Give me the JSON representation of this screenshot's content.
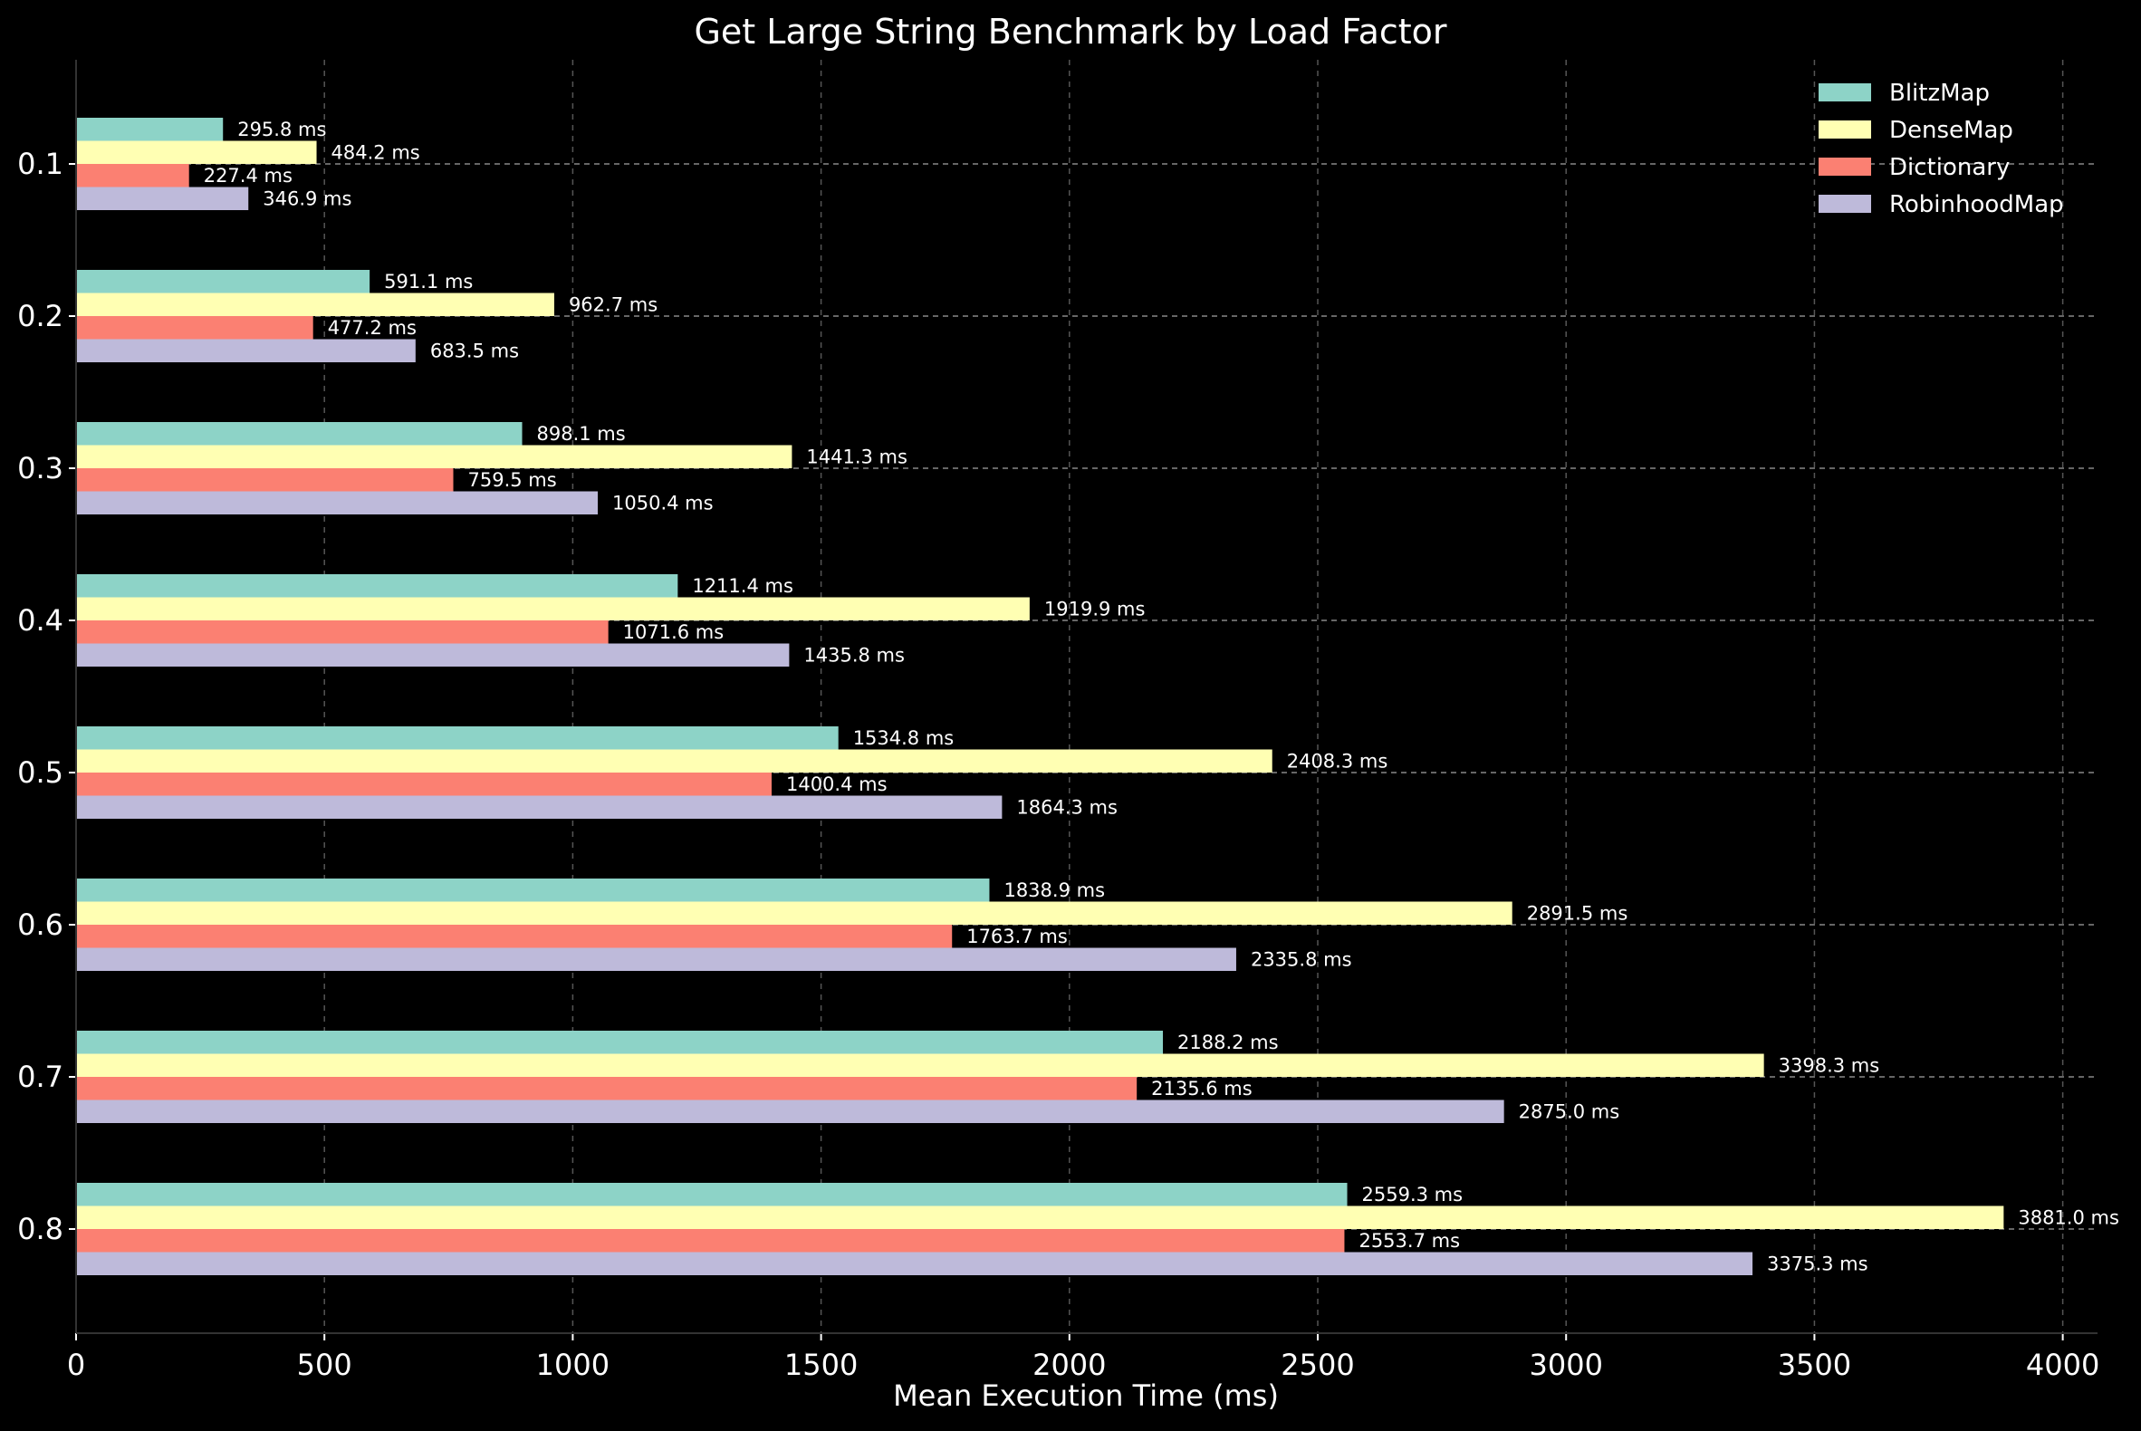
{
  "chart_data": {
    "type": "bar",
    "orientation": "horizontal",
    "title": "Get Large String Benchmark by Load Factor",
    "xlabel": "Mean Execution Time (ms)",
    "ylabel": "",
    "xlim": [
      0,
      4070
    ],
    "xticks": [
      0,
      500,
      1000,
      1500,
      2000,
      2500,
      3000,
      3500,
      4000
    ],
    "categories": [
      "0.1",
      "0.2",
      "0.3",
      "0.4",
      "0.5",
      "0.6",
      "0.7",
      "0.8"
    ],
    "value_suffix": " ms",
    "grid": true,
    "legend_position": "top-right",
    "series": [
      {
        "name": "BlitzMap",
        "color": "#8dd3c7",
        "values": [
          295.8,
          591.1,
          898.1,
          1211.4,
          1534.8,
          1838.9,
          2188.2,
          2559.3
        ]
      },
      {
        "name": "DenseMap",
        "color": "#ffffb3",
        "values": [
          484.2,
          962.7,
          1441.3,
          1919.9,
          2408.3,
          2891.5,
          3398.3,
          3881.0
        ]
      },
      {
        "name": "Dictionary",
        "color": "#fb8072",
        "values": [
          227.4,
          477.2,
          759.5,
          1071.6,
          1400.4,
          1763.7,
          2135.6,
          2553.7
        ]
      },
      {
        "name": "RobinhoodMap",
        "color": "#bebada",
        "values": [
          346.9,
          683.5,
          1050.4,
          1435.8,
          1864.3,
          2335.8,
          2875.0,
          3375.3
        ]
      }
    ]
  }
}
